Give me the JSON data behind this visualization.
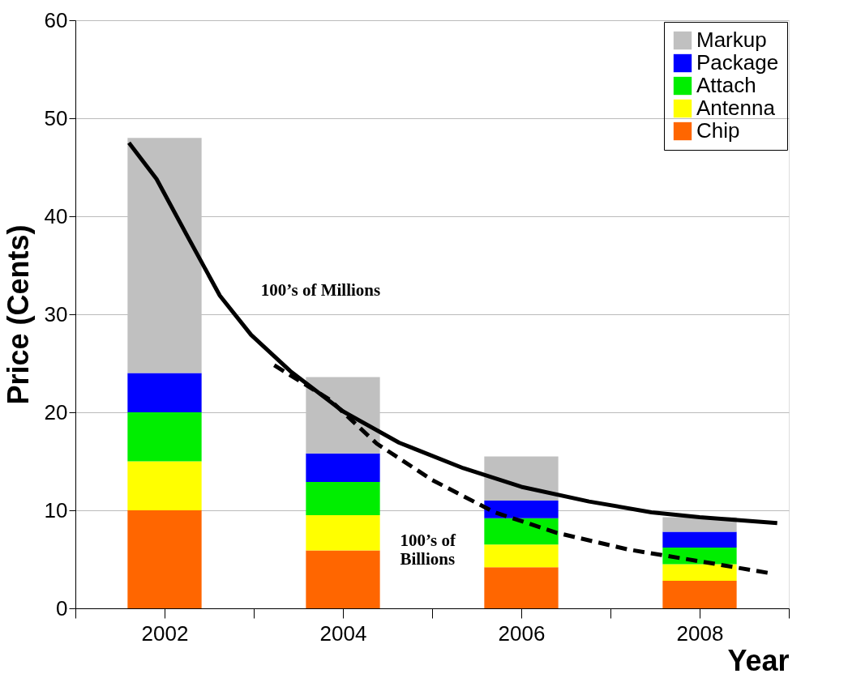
{
  "chart_data": {
    "type": "bar",
    "stacked": true,
    "xlabel": "Year",
    "ylabel": "Price (Cents)",
    "x": [
      2002,
      2004,
      2006,
      2008
    ],
    "xlim": [
      2001,
      2009
    ],
    "xticks": [
      {
        "value": 2001,
        "label": null
      },
      2002,
      {
        "value": 2003,
        "label": null
      },
      2004,
      {
        "value": 2005,
        "label": null
      },
      2006,
      {
        "value": 2007,
        "label": null
      },
      2008,
      {
        "value": 2009,
        "label": null
      }
    ],
    "ylim": [
      0,
      60
    ],
    "yticks": [
      0,
      10,
      20,
      30,
      40,
      50,
      60
    ],
    "grid": "y",
    "legend": "top right",
    "series": [
      {
        "name": "Chip",
        "color": "#ff6600",
        "values": [
          10,
          5.9,
          4.2,
          2.8
        ]
      },
      {
        "name": "Antenna",
        "color": "#ffff00",
        "values": [
          5,
          3.6,
          2.3,
          1.7
        ]
      },
      {
        "name": "Attach",
        "color": "#00ee00",
        "values": [
          5,
          3.4,
          2.7,
          1.7
        ]
      },
      {
        "name": "Package",
        "color": "#0000ff",
        "values": [
          4,
          2.9,
          1.8,
          1.6
        ]
      },
      {
        "name": "Markup",
        "color": "#c0c0c0",
        "values": [
          24,
          7.8,
          4.5,
          1.5
        ]
      },
      {
        "type": "line",
        "color": "#000000",
        "line_style": "solid",
        "x": [
          2001.6,
          2001.91,
          2002.26,
          2002.62,
          2002.97,
          2003.41,
          2004,
          2004.63,
          2005.35,
          2006,
          2006.76,
          2007.46,
          2008,
          2008.87
        ],
        "values": [
          47.5,
          43.8,
          37.9,
          31.9,
          27.9,
          24.2,
          20.1,
          16.9,
          14.3,
          12.4,
          10.9,
          9.8,
          9.3,
          8.7
        ]
      },
      {
        "type": "line",
        "color": "#000000",
        "line_style": "dashed",
        "x": [
          2003.23,
          2003.85,
          2004.38,
          2005,
          2005.7,
          2006.4,
          2007.2,
          2008,
          2008.78
        ],
        "values": [
          24.8,
          21.3,
          16.8,
          13.1,
          9.8,
          7.7,
          6.0,
          4.8,
          3.6
        ]
      }
    ],
    "annotations": [
      "100’s of Millions",
      "100’s of\nBillions"
    ]
  }
}
